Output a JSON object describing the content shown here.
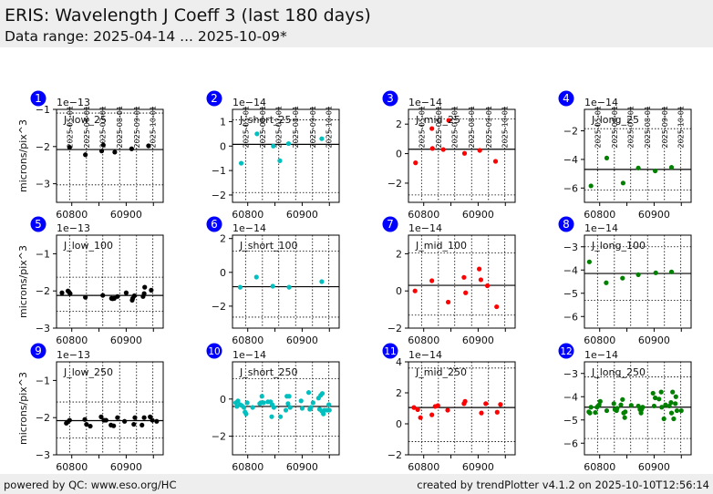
{
  "header": {
    "title": "ERIS: Wavelength J Coeff 3 (last 180 days)",
    "subtitle": "Data range: 2025-04-14 ... 2025-10-09*"
  },
  "footer": {
    "left": "powered by QC: www.eso.org/HC",
    "right": "created by trendPlotter v4.1.2 on 2025-10-10T12:56:14"
  },
  "colors": {
    "badge": "#0000ff",
    "low": "#000000",
    "short": "#00bfbf",
    "mid": "#ff0000",
    "long": "#008000"
  },
  "chart_data": {
    "type": "scatter",
    "ylabel": "microns/pix^3",
    "xlim": [
      60772,
      60968
    ],
    "x_ticks": [
      60800,
      60900
    ],
    "date_ticks": {
      "labels": [
        "2025-05-01",
        "2025-06-01",
        "2025-07-01",
        "2025-08-01",
        "2025-09-01",
        "2025-10-01"
      ],
      "mjd": [
        60796,
        60827,
        60857,
        60888,
        60919,
        60949
      ]
    },
    "panels": [
      {
        "id": "1",
        "label": "J_low_25",
        "color": "low",
        "exp": "1e−13",
        "ylim": [
          -3.5,
          -1
        ],
        "yticks": [
          -3,
          -2,
          -1
        ],
        "ref": -2.08,
        "lims": [
          -1.1,
          -3.03
        ],
        "points": [
          [
            60796,
            -2.02
          ],
          [
            60825,
            -2.22
          ],
          [
            60855,
            -2.12
          ],
          [
            60858,
            -1.96
          ],
          [
            60879,
            -2.15
          ],
          [
            60910,
            -2.06
          ],
          [
            60941,
            -1.98
          ]
        ]
      },
      {
        "id": "2",
        "label": "J_short_25",
        "color": "short",
        "exp": "1e−14",
        "ylim": [
          -2.3,
          1.5
        ],
        "yticks": [
          -2,
          -1,
          0,
          1
        ],
        "ref": 0.07,
        "lims": [
          1.07,
          -1.9
        ],
        "points": [
          [
            60788,
            -0.7
          ],
          [
            60817,
            0.5
          ],
          [
            60847,
            0.0
          ],
          [
            60859,
            -0.6
          ],
          [
            60875,
            0.1
          ],
          [
            60936,
            0.3
          ]
        ]
      },
      {
        "id": "3",
        "label": "J_mid_25",
        "color": "mid",
        "exp": "1e−14",
        "ylim": [
          -3.3,
          3
        ],
        "yticks": [
          -2,
          0,
          2
        ],
        "ref": 0.3,
        "lims": [
          2.35,
          -2.8
        ],
        "points": [
          [
            60785,
            -0.62
          ],
          [
            60815,
            1.7
          ],
          [
            60816,
            0.35
          ],
          [
            60836,
            0.28
          ],
          [
            60846,
            2.25
          ],
          [
            60875,
            0.02
          ],
          [
            60903,
            0.22
          ],
          [
            60932,
            -0.52
          ]
        ]
      },
      {
        "id": "4",
        "label": "J_long_25",
        "color": "long",
        "exp": "1e−14",
        "ylim": [
          -7,
          -0.5
        ],
        "yticks": [
          -6,
          -4,
          -2
        ],
        "ref": -4.7,
        "lims": [
          -1.85,
          -6.15
        ],
        "points": [
          [
            60784,
            -5.85
          ],
          [
            60813,
            -3.9
          ],
          [
            60843,
            -5.65
          ],
          [
            60871,
            -4.6
          ],
          [
            60902,
            -4.8
          ],
          [
            60932,
            -4.55
          ]
        ]
      },
      {
        "id": "5",
        "label": "J_low_100",
        "color": "low",
        "exp": "1e−13",
        "ylim": [
          -3,
          -0.5
        ],
        "yticks": [
          -3,
          -2,
          -1
        ],
        "ref": -2.12,
        "lims": [
          -1.63,
          -2.55
        ],
        "points": [
          [
            60782,
            -2.05
          ],
          [
            60793,
            -2.0
          ],
          [
            60795,
            -2.03
          ],
          [
            60797,
            -2.07
          ],
          [
            60825,
            -2.17
          ],
          [
            60857,
            -2.12
          ],
          [
            60873,
            -2.2
          ],
          [
            60875,
            -2.21
          ],
          [
            60878,
            -2.2
          ],
          [
            60884,
            -2.15
          ],
          [
            60900,
            -2.05
          ],
          [
            60911,
            -2.25
          ],
          [
            60912,
            -2.2
          ],
          [
            60915,
            -2.13
          ],
          [
            60931,
            -2.15
          ],
          [
            60933,
            -2.07
          ],
          [
            60934,
            -1.9
          ],
          [
            60946,
            -1.98
          ]
        ]
      },
      {
        "id": "6",
        "label": "J_short_100",
        "color": "short",
        "exp": "1e−14",
        "ylim": [
          -3.3,
          2.2
        ],
        "yticks": [
          -2,
          0,
          2
        ],
        "ref": -0.85,
        "lims": [
          1.25,
          -2.65
        ],
        "points": [
          [
            60786,
            -0.88
          ],
          [
            60816,
            -0.28
          ],
          [
            60846,
            -0.82
          ],
          [
            60876,
            -0.88
          ],
          [
            60936,
            -0.55
          ]
        ]
      },
      {
        "id": "7",
        "label": "J_mid_100",
        "color": "mid",
        "exp": "1e−14",
        "ylim": [
          -2,
          3
        ],
        "yticks": [
          -2,
          0,
          2
        ],
        "ref": 0.3,
        "lims": [
          2.05,
          -1.3
        ],
        "points": [
          [
            60784,
            0.0
          ],
          [
            60815,
            0.55
          ],
          [
            60845,
            -0.6
          ],
          [
            60874,
            0.73
          ],
          [
            60877,
            -0.1
          ],
          [
            60902,
            1.18
          ],
          [
            60905,
            0.6
          ],
          [
            60917,
            0.28
          ],
          [
            60934,
            -0.85
          ]
        ]
      },
      {
        "id": "8",
        "label": "J_long_100",
        "color": "long",
        "exp": "1e−14",
        "ylim": [
          -6.5,
          -2.5
        ],
        "yticks": [
          -6,
          -5,
          -4,
          -3
        ],
        "ref": -4.15,
        "lims": [
          -3.0,
          -5.3
        ],
        "points": [
          [
            60781,
            -3.65
          ],
          [
            60812,
            -4.55
          ],
          [
            60842,
            -4.35
          ],
          [
            60871,
            -4.2
          ],
          [
            60903,
            -4.12
          ],
          [
            60932,
            -4.08
          ]
        ]
      },
      {
        "id": "9",
        "label": "J_low_250",
        "color": "low",
        "exp": "1e−13",
        "ylim": [
          -3,
          -0.5
        ],
        "yticks": [
          -3,
          -2,
          -1
        ],
        "ref": -2.08,
        "lims": [
          -1.58,
          -2.55
        ],
        "points": [
          [
            60790,
            -2.15
          ],
          [
            60792,
            -2.12
          ],
          [
            60796,
            -2.07
          ],
          [
            60824,
            -2.05
          ],
          [
            60827,
            -2.18
          ],
          [
            60834,
            -2.23
          ],
          [
            60854,
            -1.98
          ],
          [
            60859,
            -2.07
          ],
          [
            60863,
            -2.07
          ],
          [
            60872,
            -2.2
          ],
          [
            60877,
            -2.22
          ],
          [
            60884,
            -2.0
          ],
          [
            60897,
            -2.1
          ],
          [
            60914,
            -2.18
          ],
          [
            60916,
            -2.0
          ],
          [
            60929,
            -2.2
          ],
          [
            60933,
            -2.0
          ],
          [
            60944,
            -1.98
          ],
          [
            60948,
            -2.07
          ],
          [
            60956,
            -2.1
          ]
        ]
      },
      {
        "id": "10",
        "label": "J_short_250",
        "color": "short",
        "exp": "1e−14",
        "ylim": [
          -3,
          2
        ],
        "yticks": [
          -2,
          0
        ],
        "ref": -0.4,
        "lims": [
          1.1,
          -2.0
        ],
        "points": [
          [
            60778,
            -0.2
          ],
          [
            60780,
            -0.4
          ],
          [
            60782,
            -0.1
          ],
          [
            60786,
            -0.3
          ],
          [
            60789,
            -0.35
          ],
          [
            60793,
            -0.45
          ],
          [
            60795,
            -0.7
          ],
          [
            60797,
            -0.8
          ],
          [
            60799,
            -0.2
          ],
          [
            60809,
            -0.45
          ],
          [
            60822,
            -0.25
          ],
          [
            60824,
            -0.2
          ],
          [
            60826,
            0.15
          ],
          [
            60829,
            -0.2
          ],
          [
            60837,
            -0.15
          ],
          [
            60842,
            -0.15
          ],
          [
            60844,
            -0.95
          ],
          [
            60845,
            -0.3
          ],
          [
            60848,
            -0.45
          ],
          [
            60860,
            -0.95
          ],
          [
            60870,
            -0.6
          ],
          [
            60872,
            0.15
          ],
          [
            60874,
            -0.25
          ],
          [
            60876,
            0.15
          ],
          [
            60878,
            -0.45
          ],
          [
            60898,
            -0.1
          ],
          [
            60900,
            -0.5
          ],
          [
            60912,
            0.35
          ],
          [
            60914,
            -0.55
          ],
          [
            60916,
            -0.45
          ],
          [
            60920,
            -0.2
          ],
          [
            60930,
            0.05
          ],
          [
            60932,
            -0.55
          ],
          [
            60934,
            0.2
          ],
          [
            60936,
            -0.65
          ],
          [
            60937,
            0.3
          ],
          [
            60939,
            -0.8
          ],
          [
            60941,
            -0.6
          ],
          [
            60946,
            -0.6
          ],
          [
            60949,
            -0.3
          ],
          [
            60950,
            -0.6
          ]
        ]
      },
      {
        "id": "11",
        "label": "J_mid_250",
        "color": "mid",
        "exp": "1e−14",
        "ylim": [
          -2,
          4
        ],
        "yticks": [
          -2,
          0,
          2,
          4
        ],
        "ref": 1.05,
        "lims": [
          3.6,
          -1.15
        ],
        "points": [
          [
            60782,
            1.05
          ],
          [
            60789,
            0.92
          ],
          [
            60794,
            0.4
          ],
          [
            60815,
            0.58
          ],
          [
            60821,
            1.12
          ],
          [
            60826,
            1.18
          ],
          [
            60844,
            0.88
          ],
          [
            60874,
            1.3
          ],
          [
            60876,
            1.45
          ],
          [
            60906,
            0.7
          ],
          [
            60914,
            1.3
          ],
          [
            60935,
            0.75
          ],
          [
            60941,
            1.25
          ]
        ]
      },
      {
        "id": "12",
        "label": "J_long_250",
        "color": "long",
        "exp": "1e−14",
        "ylim": [
          -6.5,
          -2.5
        ],
        "yticks": [
          -6,
          -5,
          -4,
          -3
        ],
        "ref": -4.45,
        "lims": [
          -3.15,
          -5.8
        ],
        "points": [
          [
            60780,
            -4.65
          ],
          [
            60782,
            -4.7
          ],
          [
            60784,
            -4.45
          ],
          [
            60792,
            -4.68
          ],
          [
            60795,
            -4.45
          ],
          [
            60797,
            -4.4
          ],
          [
            60799,
            -4.35
          ],
          [
            60801,
            -4.2
          ],
          [
            60813,
            -4.6
          ],
          [
            60826,
            -4.3
          ],
          [
            60828,
            -4.55
          ],
          [
            60831,
            -4.6
          ],
          [
            60832,
            -4.5
          ],
          [
            60839,
            -4.35
          ],
          [
            60842,
            -4.12
          ],
          [
            60844,
            -4.7
          ],
          [
            60846,
            -4.9
          ],
          [
            60847,
            -4.65
          ],
          [
            60858,
            -4.37
          ],
          [
            60871,
            -4.4
          ],
          [
            60874,
            -4.55
          ],
          [
            60876,
            -4.7
          ],
          [
            60877,
            -4.55
          ],
          [
            60879,
            -4.45
          ],
          [
            60898,
            -3.85
          ],
          [
            60900,
            -4.4
          ],
          [
            60902,
            -4.05
          ],
          [
            60909,
            -4.1
          ],
          [
            60913,
            -3.8
          ],
          [
            60914,
            -4.45
          ],
          [
            60918,
            -4.95
          ],
          [
            60921,
            -4.35
          ],
          [
            60928,
            -4.4
          ],
          [
            60931,
            -4.25
          ],
          [
            60932,
            -4.7
          ],
          [
            60934,
            -3.8
          ],
          [
            60936,
            -4.95
          ],
          [
            60939,
            -4.3
          ],
          [
            60940,
            -4.0
          ],
          [
            60942,
            -4.6
          ],
          [
            60950,
            -4.6
          ]
        ]
      }
    ]
  }
}
